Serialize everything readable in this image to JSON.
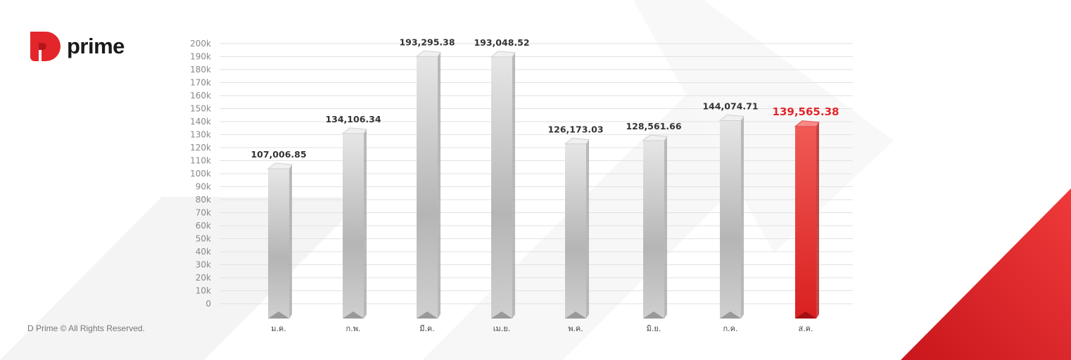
{
  "brand": {
    "name": "prime",
    "logo_letter": "D"
  },
  "footer": {
    "copyright": "D Prime © All Rights Reserved."
  },
  "colors": {
    "accent": "#e3262b",
    "bar": "#c8c8c8",
    "grid": "#e2e2e2",
    "highlight_label": "#e3262b"
  },
  "chart_data": {
    "type": "bar",
    "categories": [
      "ม.ค.",
      "ก.พ.",
      "มี.ค.",
      "เม.ย.",
      "พ.ค.",
      "มิ.ย.",
      "ก.ค.",
      "ส.ค."
    ],
    "values": [
      107006.85,
      134106.34,
      193295.38,
      193048.52,
      126173.03,
      128561.66,
      144074.71,
      139565.38
    ],
    "data_labels": [
      "107,006.85",
      "134,106.34",
      "193,295.38",
      "193,048.52",
      "126,173.03",
      "128,561.66",
      "144,074.71",
      "139,565.38"
    ],
    "highlight_index": 7,
    "ylim": [
      0,
      200000
    ],
    "yticks": [
      "0",
      "10k",
      "20k",
      "30k",
      "40k",
      "50k",
      "60k",
      "70k",
      "80k",
      "90k",
      "100k",
      "110k",
      "120k",
      "130k",
      "140k",
      "150k",
      "160k",
      "170k",
      "180k",
      "190k",
      "200k"
    ],
    "grid": true,
    "title": "",
    "xlabel": "",
    "ylabel": ""
  }
}
